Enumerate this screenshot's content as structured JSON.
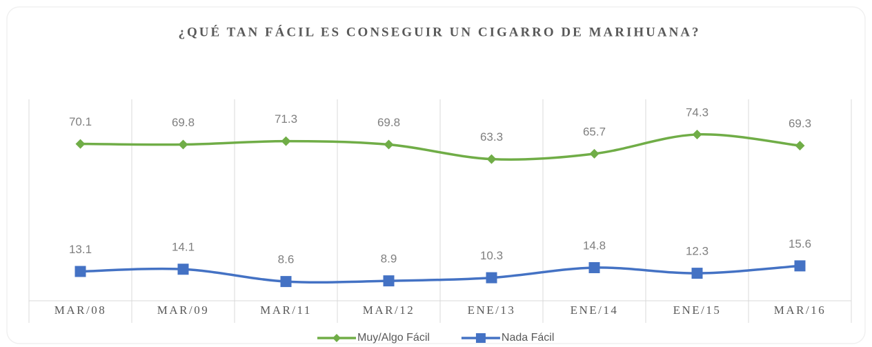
{
  "chart_data": {
    "type": "line",
    "title": "¿QUÉ TAN FÁCIL ES CONSEGUIR UN CIGARRO DE MARIHUANA?",
    "categories": [
      "MAR/08",
      "MAR/09",
      "MAR/11",
      "MAR/12",
      "ENE/13",
      "ENE/14",
      "ENE/15",
      "MAR/16"
    ],
    "series": [
      {
        "name": "Muy/Algo Fácil",
        "color": "#70ad47",
        "marker": "diamond",
        "values": [
          70.1,
          69.8,
          71.3,
          69.8,
          63.3,
          65.7,
          74.3,
          69.3
        ]
      },
      {
        "name": "Nada Fácil",
        "color": "#4472c4",
        "marker": "square",
        "values": [
          13.1,
          14.1,
          8.6,
          8.9,
          10.3,
          14.8,
          12.3,
          15.6
        ]
      }
    ],
    "ylim": [
      0,
      90
    ],
    "smooth": true,
    "legend": "bottom"
  }
}
